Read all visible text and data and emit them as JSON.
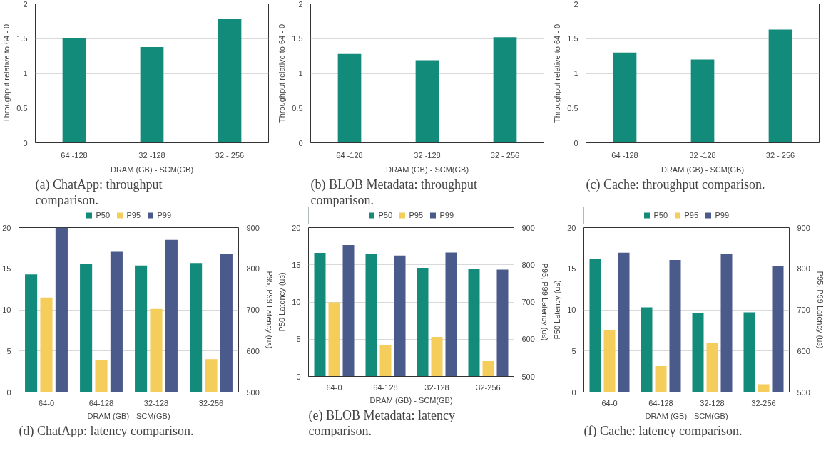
{
  "chart_data": [
    {
      "type": "bar",
      "categories": [
        "64 -128",
        "32 -128",
        "32 - 256"
      ],
      "values": [
        1.51,
        1.38,
        1.79
      ],
      "color": "#138b7b",
      "xlabel": "DRAM (GB) - SCM(GB)",
      "ylabel": "Throughput relative to 64 - 0",
      "ylim": [
        0,
        2
      ],
      "yticks": [
        0,
        0.5,
        1,
        1.5,
        2
      ],
      "grid": "y",
      "annotations": [
        "(a) ChatApp: throughput comparison."
      ]
    },
    {
      "type": "bar",
      "categories": [
        "64 -128",
        "32 -128",
        "32 - 256"
      ],
      "values": [
        1.28,
        1.19,
        1.52
      ],
      "color": "#138b7b",
      "xlabel": "DRAM (GB) - SCM(GB)",
      "ylabel": "Throughput relative to 64 - 0",
      "ylim": [
        0,
        2
      ],
      "yticks": [
        0,
        0.5,
        1,
        1.5,
        2
      ],
      "grid": "y",
      "annotations": [
        "(b) BLOB Metadata: throughput comparison."
      ]
    },
    {
      "type": "bar",
      "categories": [
        "64 -128",
        "32 -128",
        "32 - 256"
      ],
      "values": [
        1.3,
        1.2,
        1.63
      ],
      "color": "#138b7b",
      "xlabel": "DRAM (GB) - SCM(GB)",
      "ylabel": "Throughput relative to 64 - 0",
      "ylim": [
        0,
        2
      ],
      "yticks": [
        0,
        0.5,
        1,
        1.5,
        2
      ],
      "grid": "y",
      "annotations": [
        "(c) Cache: throughput comparison."
      ]
    },
    {
      "type": "bar",
      "categories": [
        "64-0",
        "64-128",
        "32-128",
        "32-256"
      ],
      "xlabel": "DRAM (GB) - SCM(GB)",
      "y2label": "P95, P99 Latency (us)",
      "ylim": [
        0,
        20
      ],
      "yticks": [
        0,
        5,
        10,
        15,
        20
      ],
      "y2lim": [
        500,
        900
      ],
      "y2ticks": [
        500,
        600,
        700,
        800,
        900
      ],
      "grid": "y",
      "legend": "top",
      "series": [
        {
          "name": "P50",
          "color": "#138b7b",
          "values": [
            14.3,
            15.6,
            15.4,
            15.7
          ]
        },
        {
          "name": "P95",
          "color": "#f4cd5a",
          "axis": "y2",
          "values": [
            730,
            578,
            702,
            580
          ]
        },
        {
          "name": "P99",
          "color": "#4a5a8a",
          "axis": "y2",
          "values": [
            900,
            841,
            870,
            836
          ]
        }
      ],
      "annotations": [
        "(d) ChatApp: latency comparison."
      ]
    },
    {
      "type": "bar",
      "categories": [
        "64-0",
        "64-128",
        "32-128",
        "32-256"
      ],
      "xlabel": "DRAM (GB) - SCM(GB)",
      "ylabel": "P50 Latency (us)",
      "y2label": "P95, P99 Latency (us)",
      "ylim": [
        0,
        20
      ],
      "yticks": [
        0,
        5,
        10,
        15,
        20
      ],
      "y2lim": [
        500,
        900
      ],
      "y2ticks": [
        500,
        600,
        700,
        800,
        900
      ],
      "grid": "y",
      "legend": "top",
      "series": [
        {
          "name": "P50",
          "color": "#138b7b",
          "values": [
            16.6,
            16.5,
            14.6,
            14.5
          ]
        },
        {
          "name": "P95",
          "color": "#f4cd5a",
          "axis": "y2",
          "values": [
            699,
            585,
            606,
            541
          ]
        },
        {
          "name": "P99",
          "color": "#4a5a8a",
          "axis": "y2",
          "values": [
            853,
            825,
            833,
            787
          ]
        }
      ],
      "annotations": [
        "(e) BLOB Metadata: latency comparison."
      ]
    },
    {
      "type": "bar",
      "categories": [
        "64-0",
        "64-128",
        "32-128",
        "32-256"
      ],
      "xlabel": "DRAM (GB) - SCM(GB)",
      "ylabel": "P50 Latency (us)",
      "y2label": "P95, P99 Latency (us)",
      "ylim": [
        0,
        20
      ],
      "yticks": [
        0,
        5,
        10,
        15,
        20
      ],
      "y2lim": [
        500,
        900
      ],
      "y2ticks": [
        500,
        600,
        700,
        800,
        900
      ],
      "grid": "y",
      "legend": "top",
      "series": [
        {
          "name": "P50",
          "color": "#138b7b",
          "values": [
            16.2,
            10.3,
            9.6,
            9.7
          ]
        },
        {
          "name": "P95",
          "color": "#f4cd5a",
          "axis": "y2",
          "values": [
            651,
            563,
            620,
            519
          ]
        },
        {
          "name": "P99",
          "color": "#4a5a8a",
          "axis": "y2",
          "values": [
            839,
            821,
            835,
            806
          ]
        }
      ],
      "annotations": [
        "(f) Cache: latency comparison."
      ]
    }
  ]
}
